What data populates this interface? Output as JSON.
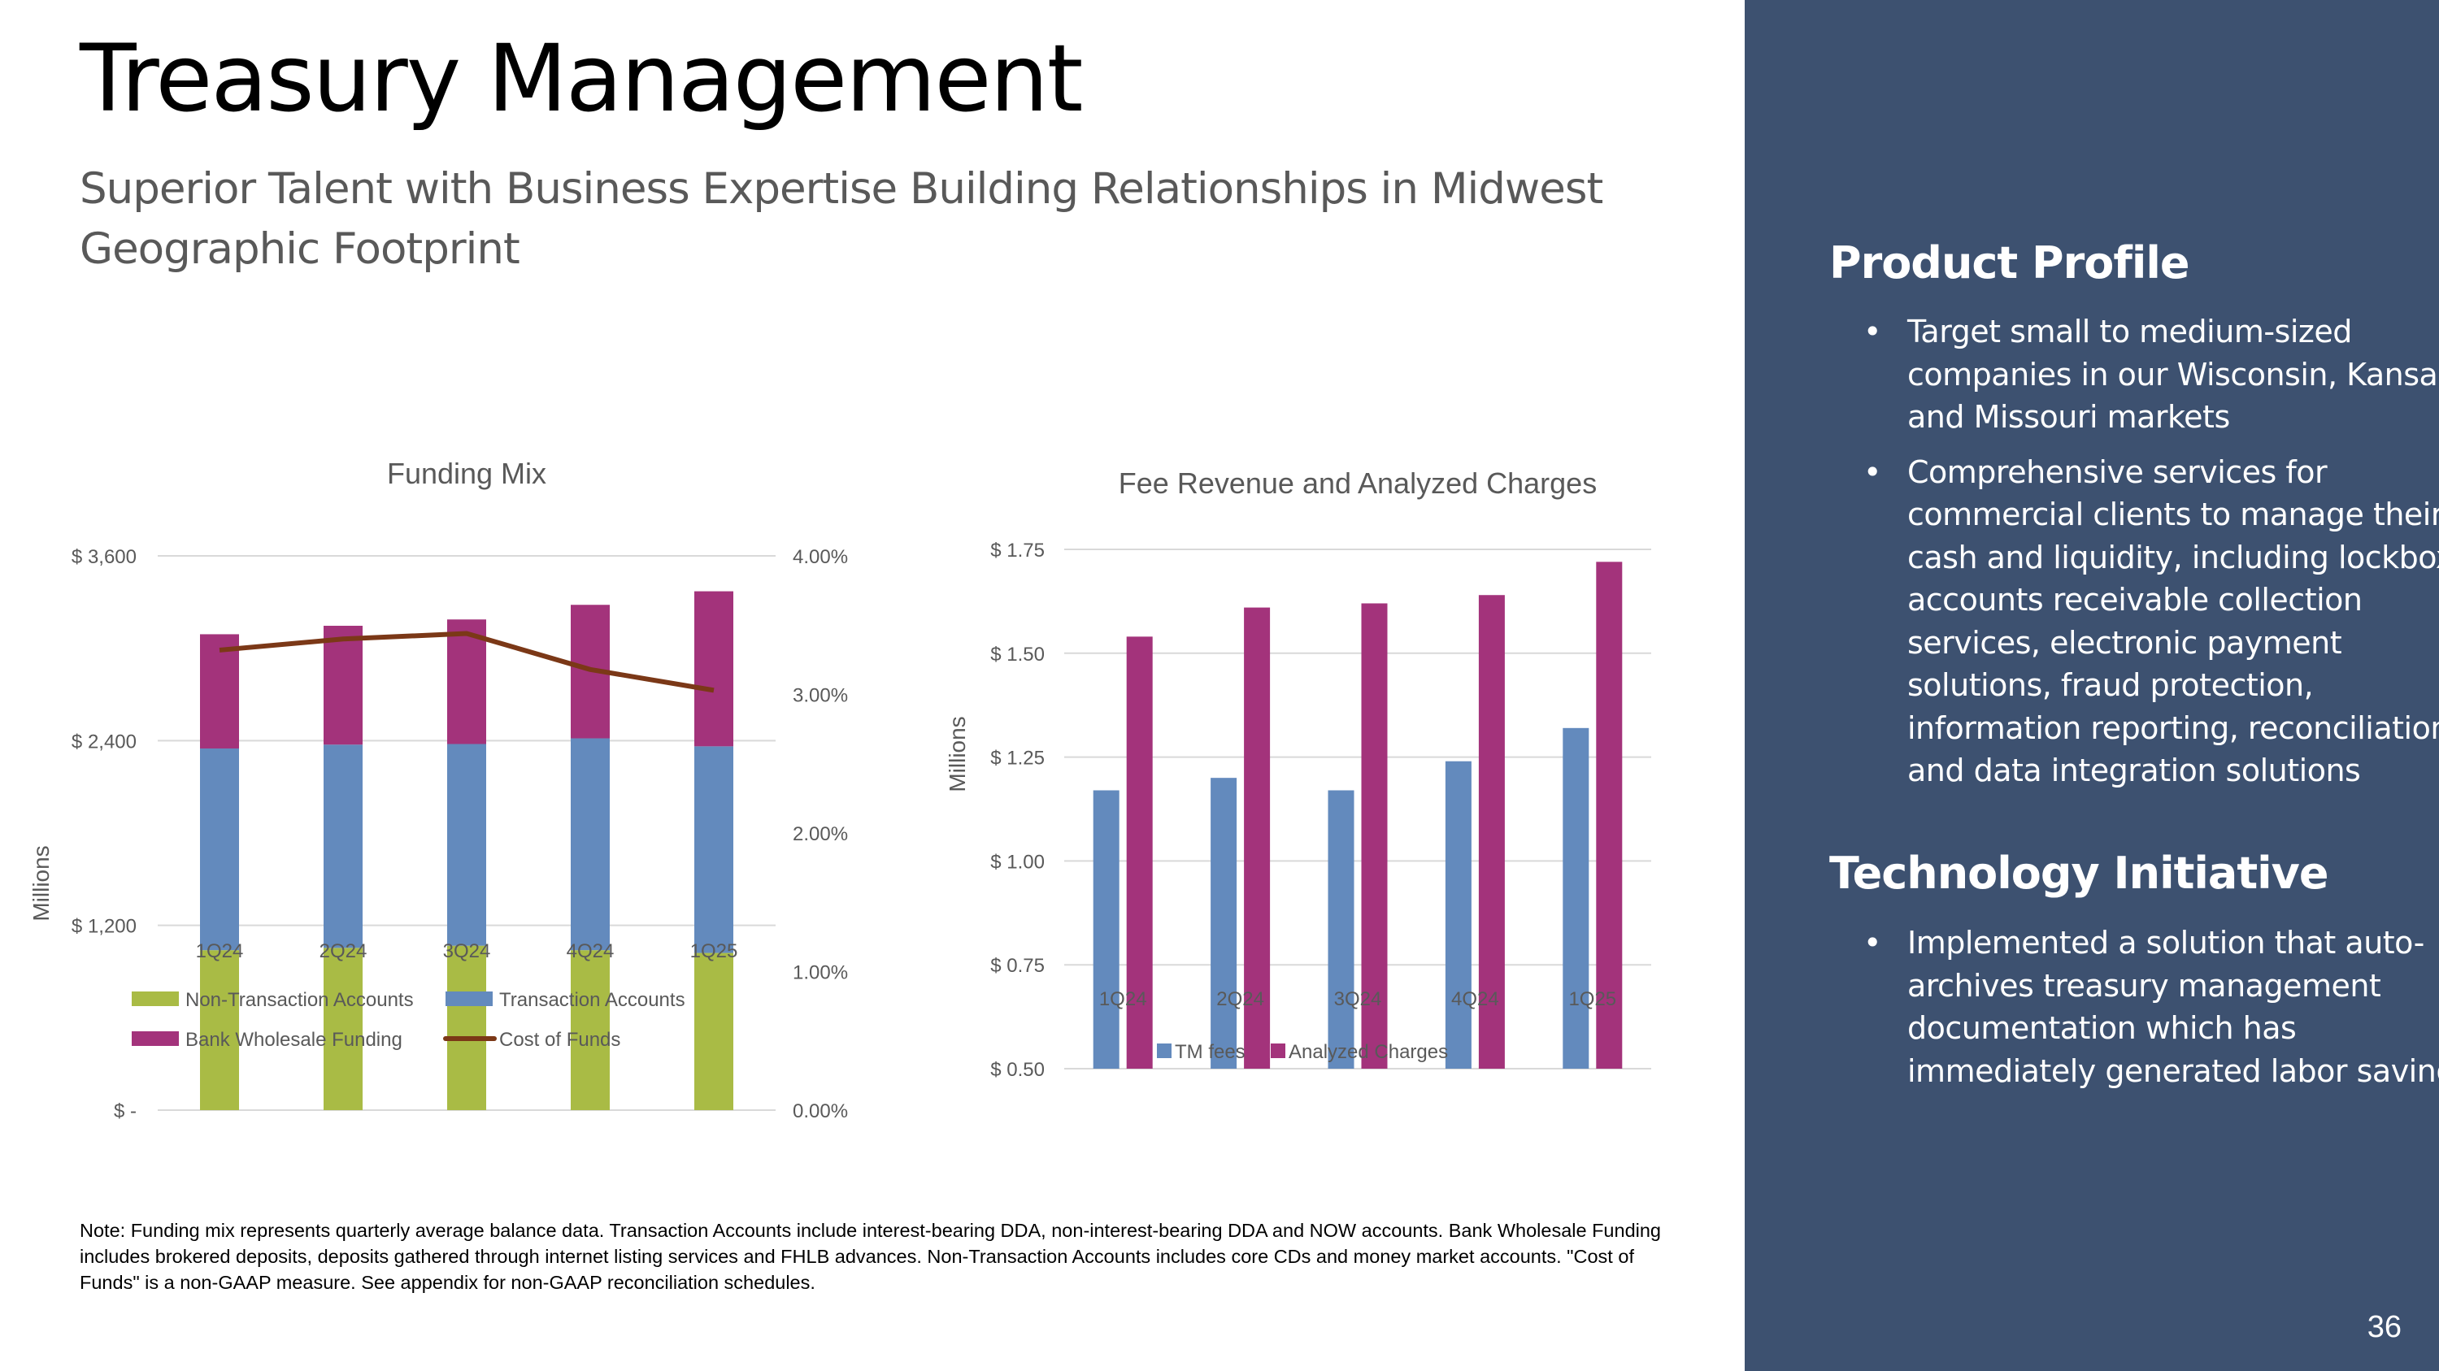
{
  "header": {
    "title": "Treasury Management",
    "subtitle": "Superior Talent with Business Expertise Building Relationships in Midwest Geographic Footprint"
  },
  "panel": {
    "heading1": "Product Profile",
    "bullets1": [
      "Target small to medium-sized companies in our Wisconsin, Kansas, and Missouri markets",
      "Comprehensive services for commercial clients to manage their cash and liquidity, including lockbox, accounts receivable collection services, electronic payment solutions, fraud protection, information reporting, reconciliation, and data integration solutions"
    ],
    "heading2": "Technology Initiative",
    "bullets2": [
      "Implemented a solution that auto-archives treasury management documentation which has immediately generated labor savings"
    ],
    "bullet_char": "•",
    "bg_color": "#3d5170"
  },
  "page_number": "36",
  "note": "Note: Funding mix represents quarterly average balance data. Transaction Accounts include interest-bearing DDA, non-interest-bearing DDA and NOW accounts. Bank Wholesale Funding includes brokered deposits, deposits gathered through internet listing services and FHLB advances. Non-Transaction Accounts includes core CDs and money market accounts. \"Cost of Funds\" is a non-GAAP measure. See appendix for non-GAAP reconciliation schedules.",
  "chart_data": [
    {
      "type": "bar",
      "stacked": true,
      "title": "Funding Mix",
      "ylabel": "Millions",
      "categories": [
        "1Q24",
        "2Q24",
        "3Q24",
        "4Q24",
        "1Q25"
      ],
      "ylim": [
        0,
        3600
      ],
      "yticks": [
        "$ -",
        "$ 1,200",
        "$ 2,400",
        "$ 3,600"
      ],
      "y2lim": [
        0,
        4
      ],
      "y2ticks": [
        "0.00%",
        "1.00%",
        "2.00%",
        "3.00%",
        "4.00%"
      ],
      "grid": true,
      "legend": "bottom",
      "series": [
        {
          "name": "Non-Transaction Accounts",
          "color": "#a9bb45",
          "values": [
            1039,
            1054,
            1068,
            1039,
            1021
          ]
        },
        {
          "name": "Transaction Accounts",
          "color": "#638abd",
          "values": [
            1310,
            1320,
            1310,
            1376,
            1342
          ]
        },
        {
          "name": "Bank Wholesale Funding",
          "color": "#a3337b",
          "values": [
            742,
            772,
            809,
            867,
            1007
          ]
        },
        {
          "name": "Cost of Funds",
          "type": "line",
          "axis": "secondary",
          "color": "#7b3817",
          "values": [
            3.32,
            3.4,
            3.44,
            3.18,
            3.03
          ]
        }
      ]
    },
    {
      "type": "bar",
      "title": "Fee Revenue and Analyzed Charges",
      "ylabel": "Millions",
      "categories": [
        "1Q24",
        "2Q24",
        "3Q24",
        "4Q24",
        "1Q25"
      ],
      "ylim": [
        0.5,
        1.75
      ],
      "yticks": [
        "$ 0.50",
        "$ 0.75",
        "$ 1.00",
        "$ 1.25",
        "$ 1.50",
        "$ 1.75"
      ],
      "grid": true,
      "legend": "bottom",
      "series": [
        {
          "name": "TM fees",
          "color": "#638abd",
          "values": [
            1.17,
            1.2,
            1.17,
            1.24,
            1.32
          ]
        },
        {
          "name": "Analyzed Charges",
          "color": "#a3337b",
          "values": [
            1.54,
            1.61,
            1.62,
            1.64,
            1.72
          ]
        }
      ]
    }
  ]
}
